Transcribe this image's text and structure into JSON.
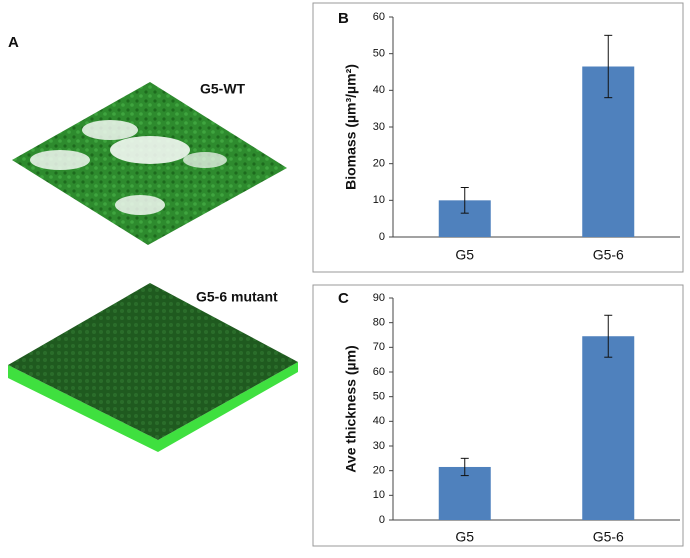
{
  "panel_a": {
    "panel_label": "A",
    "images": [
      {
        "title": "G5-WT"
      },
      {
        "title": "G5-6 mutant"
      }
    ]
  },
  "chart_data": [
    {
      "type": "bar",
      "panel_label": "B",
      "y_label": "Biomass (µm³/µm²)",
      "categories": [
        "G5",
        "G5-6"
      ],
      "values": [
        10,
        46.5
      ],
      "errors": [
        3.5,
        8.5
      ],
      "color": "#4f81bd",
      "ylim": [
        0,
        60
      ],
      "yticks": [
        0,
        10,
        20,
        30,
        40,
        50,
        60
      ],
      "grid": false
    },
    {
      "type": "bar",
      "panel_label": "C",
      "y_label": "Ave thickness (µm)",
      "categories": [
        "G5",
        "G5-6"
      ],
      "values": [
        21.5,
        74.5
      ],
      "errors": [
        3.5,
        8.5
      ],
      "color": "#4f81bd",
      "ylim": [
        0,
        90
      ],
      "yticks": [
        0,
        10,
        20,
        30,
        40,
        50,
        60,
        70,
        80,
        90
      ],
      "grid": false
    }
  ]
}
